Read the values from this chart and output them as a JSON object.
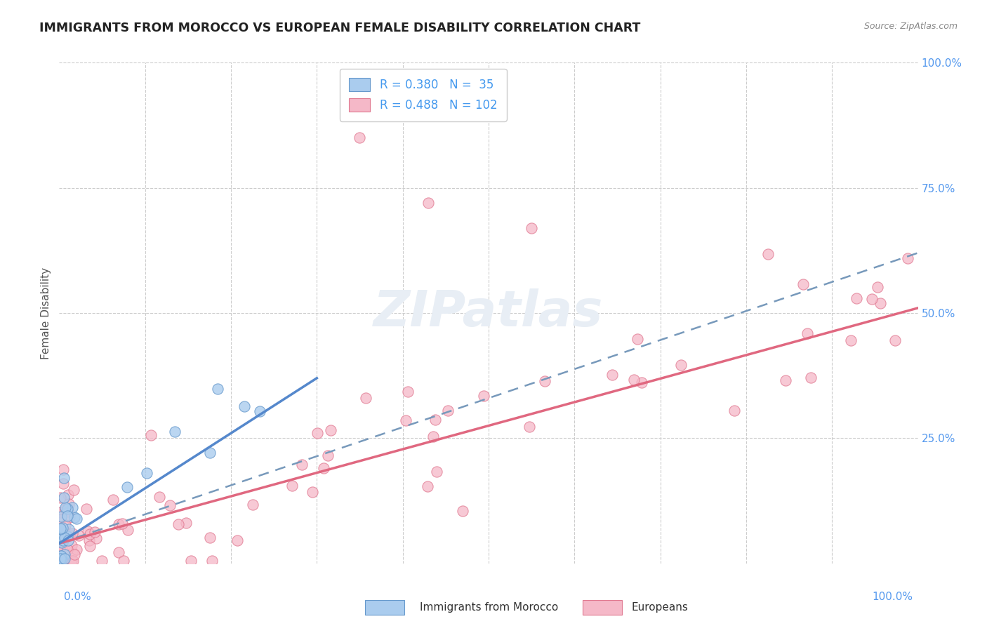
{
  "title": "IMMIGRANTS FROM MOROCCO VS EUROPEAN FEMALE DISABILITY CORRELATION CHART",
  "source": "Source: ZipAtlas.com",
  "ylabel": "Female Disability",
  "legend_r1": "R = 0.380",
  "legend_n1": "N =  35",
  "legend_r2": "R = 0.488",
  "legend_n2": "N = 102",
  "color_morocco_fill": "#aaccee",
  "color_morocco_edge": "#6699cc",
  "color_europeans_fill": "#f5b8c8",
  "color_europeans_edge": "#e07890",
  "color_morocco_trend": "#5588cc",
  "color_europeans_trend": "#e06880",
  "color_legend_text": "#4499ee",
  "background_color": "#ffffff",
  "grid_color": "#cccccc",
  "watermark_color": "#e8eef5",
  "title_color": "#222222",
  "axis_label_color": "#5599ee",
  "ylabel_color": "#555555",
  "source_color": "#888888"
}
